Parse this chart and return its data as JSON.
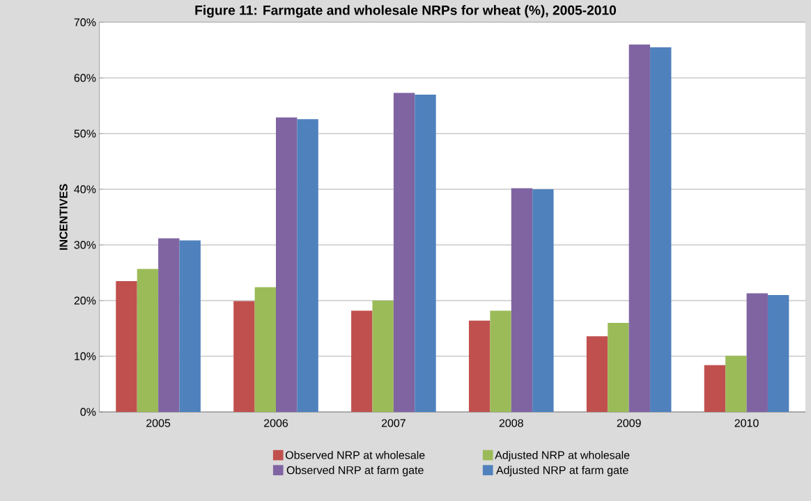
{
  "chart_data": {
    "type": "bar",
    "title": "Figure 11: Farmgate and wholesale NRPs for wheat (%), 2005-2010",
    "ylabel": "INCENTIVES",
    "categories": [
      "2005",
      "2006",
      "2007",
      "2008",
      "2009",
      "2010"
    ],
    "series": [
      {
        "name": "Observed NRP at wholesale",
        "color": "#c0504d",
        "values": [
          23.5,
          19.9,
          18.2,
          16.4,
          13.6,
          8.4
        ]
      },
      {
        "name": "Adjusted NRP at wholesale",
        "color": "#9bbb59",
        "values": [
          25.7,
          22.4,
          20.0,
          18.2,
          16.0,
          10.1
        ]
      },
      {
        "name": "Observed NRP at farm gate",
        "color": "#8064a2",
        "values": [
          31.2,
          52.9,
          57.3,
          40.2,
          66.0,
          21.3
        ]
      },
      {
        "name": "Adjusted NRP at farm gate",
        "color": "#4f81bd",
        "values": [
          30.8,
          52.6,
          57.0,
          40.0,
          65.5,
          21.0
        ]
      }
    ],
    "ylim": [
      0,
      70
    ],
    "yticks": [
      {
        "value": 0,
        "label": "0%"
      },
      {
        "value": 10,
        "label": "10%"
      },
      {
        "value": 20,
        "label": "20%"
      },
      {
        "value": 30,
        "label": "30%"
      },
      {
        "value": 40,
        "label": "40%"
      },
      {
        "value": 50,
        "label": "50%"
      },
      {
        "value": 60,
        "label": "60%"
      },
      {
        "value": 70,
        "label": "70%"
      }
    ],
    "grid": "y",
    "legend": "bottom"
  }
}
